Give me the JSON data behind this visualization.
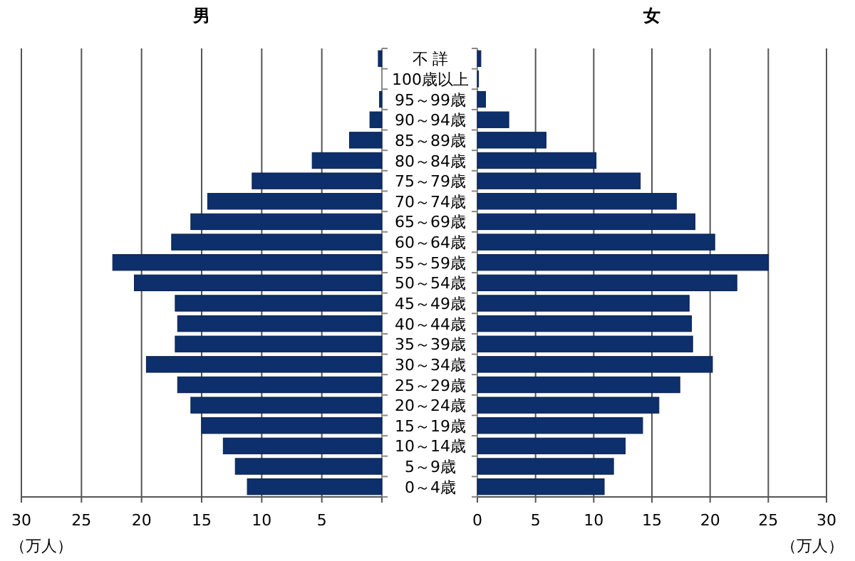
{
  "chart_data": [
    {
      "type": "bar",
      "orientation": "horizontal",
      "title": "男",
      "xlabel": "（万人）",
      "categories": [
        null,
        null,
        null,
        null,
        null,
        null,
        null,
        null,
        null,
        null,
        null,
        null,
        null,
        null,
        null,
        null,
        null,
        null,
        null,
        null,
        null,
        null
      ],
      "values": [
        0.3,
        0,
        0.2,
        1.0,
        2.7,
        5.8,
        10.8,
        14.5,
        15.9,
        17.5,
        22.4,
        20.6,
        17.2,
        17.0,
        17.2,
        19.6,
        17.0,
        15.9,
        15.0,
        13.2,
        12.2,
        11.2
      ],
      "color": "#0d2f6b",
      "xlim": [
        30,
        0
      ],
      "xticks": [
        30,
        25,
        20,
        15,
        10,
        5,
        {
          "value": 0,
          "label": null
        }
      ],
      "grid": "x",
      "tick_labels": "x"
    },
    {
      "type": "bar",
      "orientation": "horizontal",
      "title": "女",
      "xlabel": "（万人）",
      "categories": [
        "不 詳",
        "100歳以上",
        "95～99歳",
        "90～94歳",
        "85～89歳",
        "80～84歳",
        "75～79歳",
        "70～74歳",
        "65～69歳",
        "60～64歳",
        "55～59歳",
        "50～54歳",
        "45～49歳",
        "40～44歳",
        "35～39歳",
        "30～34歳",
        "25～29歳",
        "20～24歳",
        "15～19歳",
        "10～14歳",
        "5～9歳",
        "0～4歳"
      ],
      "values": [
        0.3,
        0.1,
        0.7,
        2.7,
        5.9,
        10.2,
        14.0,
        17.1,
        18.7,
        20.4,
        25.0,
        22.3,
        18.2,
        18.4,
        18.5,
        20.2,
        17.4,
        15.6,
        14.2,
        12.7,
        11.7,
        10.9
      ],
      "color": "#0d2f6b",
      "xlim": [
        0,
        30
      ],
      "xticks": [
        0,
        5,
        10,
        15,
        20,
        25,
        30
      ],
      "grid": "x"
    }
  ]
}
